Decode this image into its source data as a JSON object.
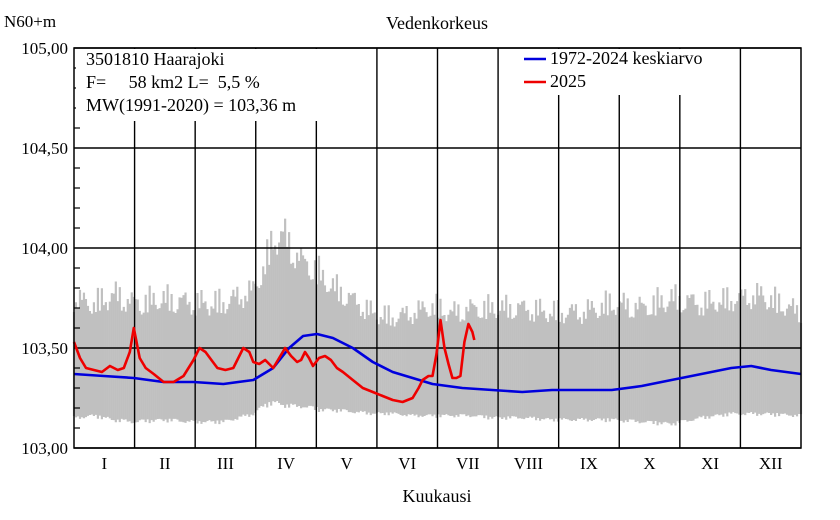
{
  "chart_data": {
    "type": "line",
    "title": "Vedenkorkeus",
    "ylabel": "N60+m",
    "xlabel": "Kuukausi",
    "ylim": [
      103.0,
      105.0
    ],
    "yticks": [
      "103,00",
      "103,50",
      "104,00",
      "104,50",
      "105,00"
    ],
    "ytick_values": [
      103.0,
      103.5,
      104.0,
      104.5,
      105.0
    ],
    "months": [
      "I",
      "II",
      "III",
      "IV",
      "V",
      "VI",
      "VII",
      "VIII",
      "IX",
      "X",
      "XI",
      "XII"
    ],
    "info_lines": [
      "3501810 Haarajoki",
      "F=     58 km2 L=  5,5 %",
      "MW(1991-2020) = 103,36 m"
    ],
    "grid": true,
    "legend_position": "top-right",
    "series": [
      {
        "name": "1972-2024 keskiarvo",
        "color": "#0000dd",
        "day": [
          0,
          15,
          30,
          45,
          60,
          75,
          90,
          100,
          108,
          115,
          122,
          130,
          140,
          150,
          160,
          170,
          180,
          195,
          210,
          225,
          240,
          255,
          270,
          285,
          300,
          310,
          320,
          330,
          340,
          350,
          365
        ],
        "values": [
          103.37,
          103.36,
          103.35,
          103.33,
          103.33,
          103.32,
          103.34,
          103.4,
          103.5,
          103.56,
          103.57,
          103.55,
          103.5,
          103.43,
          103.38,
          103.35,
          103.32,
          103.3,
          103.29,
          103.28,
          103.29,
          103.29,
          103.29,
          103.31,
          103.34,
          103.36,
          103.38,
          103.4,
          103.41,
          103.39,
          103.37
        ]
      },
      {
        "name": "2025",
        "color": "#ee0000",
        "day": [
          0,
          3,
          6,
          10,
          14,
          18,
          22,
          25,
          28,
          30,
          33,
          36,
          40,
          45,
          50,
          55,
          60,
          63,
          66,
          69,
          72,
          76,
          80,
          85,
          88,
          90,
          93,
          96,
          100,
          103,
          106,
          109,
          112,
          114,
          116,
          118,
          120,
          123,
          126,
          129,
          132,
          135,
          140,
          145,
          150,
          155,
          160,
          165,
          170,
          173,
          175,
          178,
          180,
          182,
          184,
          186,
          188,
          190,
          192,
          194,
          196,
          198,
          200,
          201
        ],
        "values": [
          103.53,
          103.45,
          103.4,
          103.39,
          103.38,
          103.41,
          103.39,
          103.4,
          103.48,
          103.6,
          103.45,
          103.4,
          103.37,
          103.33,
          103.33,
          103.36,
          103.44,
          103.5,
          103.48,
          103.44,
          103.4,
          103.39,
          103.4,
          103.5,
          103.48,
          103.43,
          103.42,
          103.44,
          103.4,
          103.45,
          103.5,
          103.46,
          103.43,
          103.44,
          103.48,
          103.45,
          103.41,
          103.45,
          103.46,
          103.44,
          103.4,
          103.38,
          103.34,
          103.3,
          103.28,
          103.26,
          103.24,
          103.23,
          103.25,
          103.3,
          103.34,
          103.36,
          103.36,
          103.47,
          103.64,
          103.5,
          103.42,
          103.35,
          103.35,
          103.36,
          103.53,
          103.62,
          103.58,
          103.54
        ]
      }
    ],
    "range_band": {
      "color": "#c0c0c0",
      "day": [
        0,
        10,
        20,
        30,
        45,
        60,
        75,
        90,
        95,
        100,
        105,
        110,
        115,
        120,
        125,
        130,
        140,
        150,
        160,
        170,
        180,
        190,
        200,
        210,
        225,
        240,
        255,
        270,
        285,
        300,
        315,
        330,
        345,
        365
      ],
      "high": [
        103.68,
        103.66,
        103.7,
        103.66,
        103.68,
        103.66,
        103.66,
        103.72,
        103.82,
        103.95,
        103.98,
        103.9,
        103.85,
        103.83,
        103.78,
        103.74,
        103.68,
        103.62,
        103.6,
        103.62,
        103.65,
        103.62,
        103.64,
        103.64,
        103.64,
        103.62,
        103.62,
        103.66,
        103.64,
        103.68,
        103.66,
        103.68,
        103.7,
        103.62
      ],
      "low": [
        103.16,
        103.17,
        103.15,
        103.14,
        103.15,
        103.14,
        103.14,
        103.18,
        103.22,
        103.24,
        103.23,
        103.22,
        103.22,
        103.21,
        103.2,
        103.2,
        103.19,
        103.18,
        103.18,
        103.17,
        103.17,
        103.17,
        103.17,
        103.16,
        103.16,
        103.15,
        103.15,
        103.15,
        103.14,
        103.13,
        103.16,
        103.18,
        103.18,
        103.17
      ]
    }
  }
}
